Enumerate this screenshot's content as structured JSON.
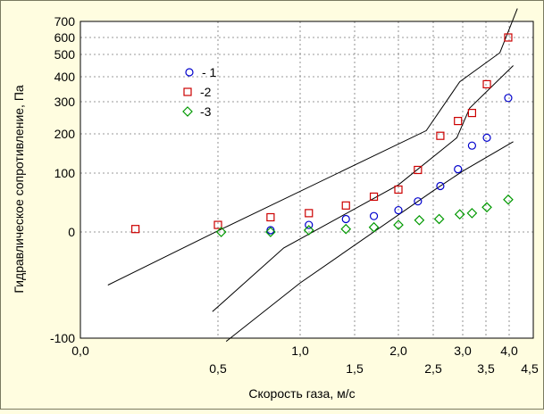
{
  "chart_data": {
    "type": "scatter",
    "title": "",
    "xlabel": "Скорость газа, м/с",
    "ylabel": "Гидравлическое сопротивление, Па",
    "x_ticks": [
      {
        "label": "0,0",
        "value": 0.0,
        "row": 0
      },
      {
        "label": "0,5",
        "value": 0.5,
        "row": 1
      },
      {
        "label": "1,0",
        "value": 1.0,
        "row": 0
      },
      {
        "label": "1,5",
        "value": 1.5,
        "row": 1
      },
      {
        "label": "2,0",
        "value": 2.0,
        "row": 0
      },
      {
        "label": "2,5",
        "value": 2.5,
        "row": 1
      },
      {
        "label": "3,0",
        "value": 3.0,
        "row": 0
      },
      {
        "label": "3,5",
        "value": 3.5,
        "row": 1
      },
      {
        "label": "4,0",
        "value": 4.0,
        "row": 0
      },
      {
        "label": "4,5",
        "value": 4.5,
        "row": 1
      }
    ],
    "y_ticks": [
      {
        "label": "700",
        "value": 700
      },
      {
        "label": "600",
        "value": 600
      },
      {
        "label": "500",
        "value": 500
      },
      {
        "label": "400",
        "value": 400
      },
      {
        "label": "300",
        "value": 300
      },
      {
        "label": "200",
        "value": 200
      },
      {
        "label": "100",
        "value": 100
      },
      {
        "label": "0",
        "value": 0
      },
      {
        "label": "-100",
        "value": -100
      }
    ],
    "grid": true,
    "legend_position": "top-left",
    "series": [
      {
        "name": "- 1",
        "marker": "circle",
        "color": "#0000cc",
        "points": [
          [
            0.82,
            3
          ],
          [
            1.08,
            12
          ],
          [
            1.42,
            22
          ],
          [
            1.72,
            27
          ],
          [
            2.0,
            37
          ],
          [
            2.28,
            52
          ],
          [
            2.62,
            78
          ],
          [
            2.92,
            110
          ],
          [
            3.2,
            170
          ],
          [
            3.52,
            190
          ],
          [
            3.98,
            315
          ]
        ]
      },
      {
        "name": "-2",
        "marker": "square",
        "color": "#cc0000",
        "points": [
          [
            0.2,
            5
          ],
          [
            0.5,
            12
          ],
          [
            0.82,
            25
          ],
          [
            1.08,
            32
          ],
          [
            1.42,
            45
          ],
          [
            1.72,
            60
          ],
          [
            2.0,
            72
          ],
          [
            2.28,
            108
          ],
          [
            2.62,
            195
          ],
          [
            2.92,
            240
          ],
          [
            3.2,
            265
          ],
          [
            3.52,
            370
          ],
          [
            3.98,
            600
          ]
        ]
      },
      {
        "name": "-3",
        "marker": "diamond",
        "color": "#009900",
        "points": [
          [
            0.52,
            0
          ],
          [
            0.82,
            0
          ],
          [
            1.08,
            3
          ],
          [
            1.42,
            5
          ],
          [
            1.72,
            8
          ],
          [
            2.0,
            12
          ],
          [
            2.3,
            20
          ],
          [
            2.6,
            22
          ],
          [
            2.95,
            30
          ],
          [
            3.2,
            32
          ],
          [
            3.52,
            42
          ],
          [
            3.98,
            55
          ]
        ]
      }
    ],
    "lines": [
      {
        "points": [
          [
            0.1,
            -50
          ],
          [
            0.5,
            2
          ],
          [
            2.4,
            210
          ],
          [
            2.95,
            380
          ],
          [
            3.8,
            510
          ],
          [
            4.2,
            780
          ]
        ]
      },
      {
        "points": [
          [
            0.48,
            -75
          ],
          [
            0.9,
            -15
          ],
          [
            2.0,
            80
          ],
          [
            2.9,
            190
          ],
          [
            3.15,
            280
          ],
          [
            4.1,
            450
          ]
        ]
      },
      {
        "points": [
          [
            0.55,
            -103
          ],
          [
            1.0,
            -48
          ],
          [
            2.5,
            70
          ],
          [
            3.0,
            105
          ],
          [
            4.1,
            180
          ]
        ]
      }
    ]
  }
}
